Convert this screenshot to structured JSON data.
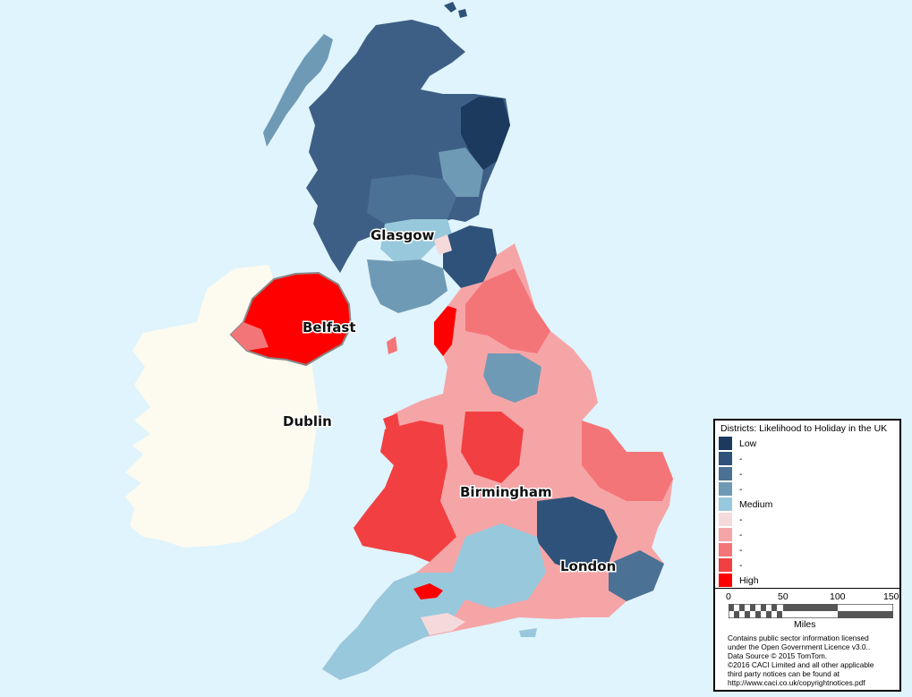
{
  "map": {
    "cities": [
      "Glasgow",
      "Belfast",
      "Dublin",
      "Birmingham",
      "London"
    ]
  },
  "legend": {
    "title": "Districts: Likelihood to Holiday in the UK",
    "classes": [
      {
        "label": "Low",
        "color": "#1b3a5e"
      },
      {
        "label": "-",
        "color": "#2e5279"
      },
      {
        "label": "-",
        "color": "#4b7195"
      },
      {
        "label": "-",
        "color": "#6f9ab5"
      },
      {
        "label": "Medium",
        "color": "#98c8dc"
      },
      {
        "label": "-",
        "color": "#f5dadc"
      },
      {
        "label": "-",
        "color": "#f6a5a7"
      },
      {
        "label": "-",
        "color": "#f47578"
      },
      {
        "label": "-",
        "color": "#f23f42"
      },
      {
        "label": "High",
        "color": "#ff0000"
      }
    ],
    "scale": {
      "ticks": [
        "0",
        "50",
        "100",
        "150"
      ],
      "unit": "Miles"
    },
    "credits": [
      "Contains public sector information licensed",
      "under the Open Government Licence v3.0..",
      "Data Source © 2015 TomTom.",
      "©2016 CACI Limited and all other applicable",
      "third party notices can be found at",
      "http://www.caci.co.uk/copyrightnotices.pdf"
    ]
  },
  "colors": {
    "sea": "#dff4fc",
    "ireland_land": "#fdfaf0",
    "ni_border": "#888888"
  }
}
